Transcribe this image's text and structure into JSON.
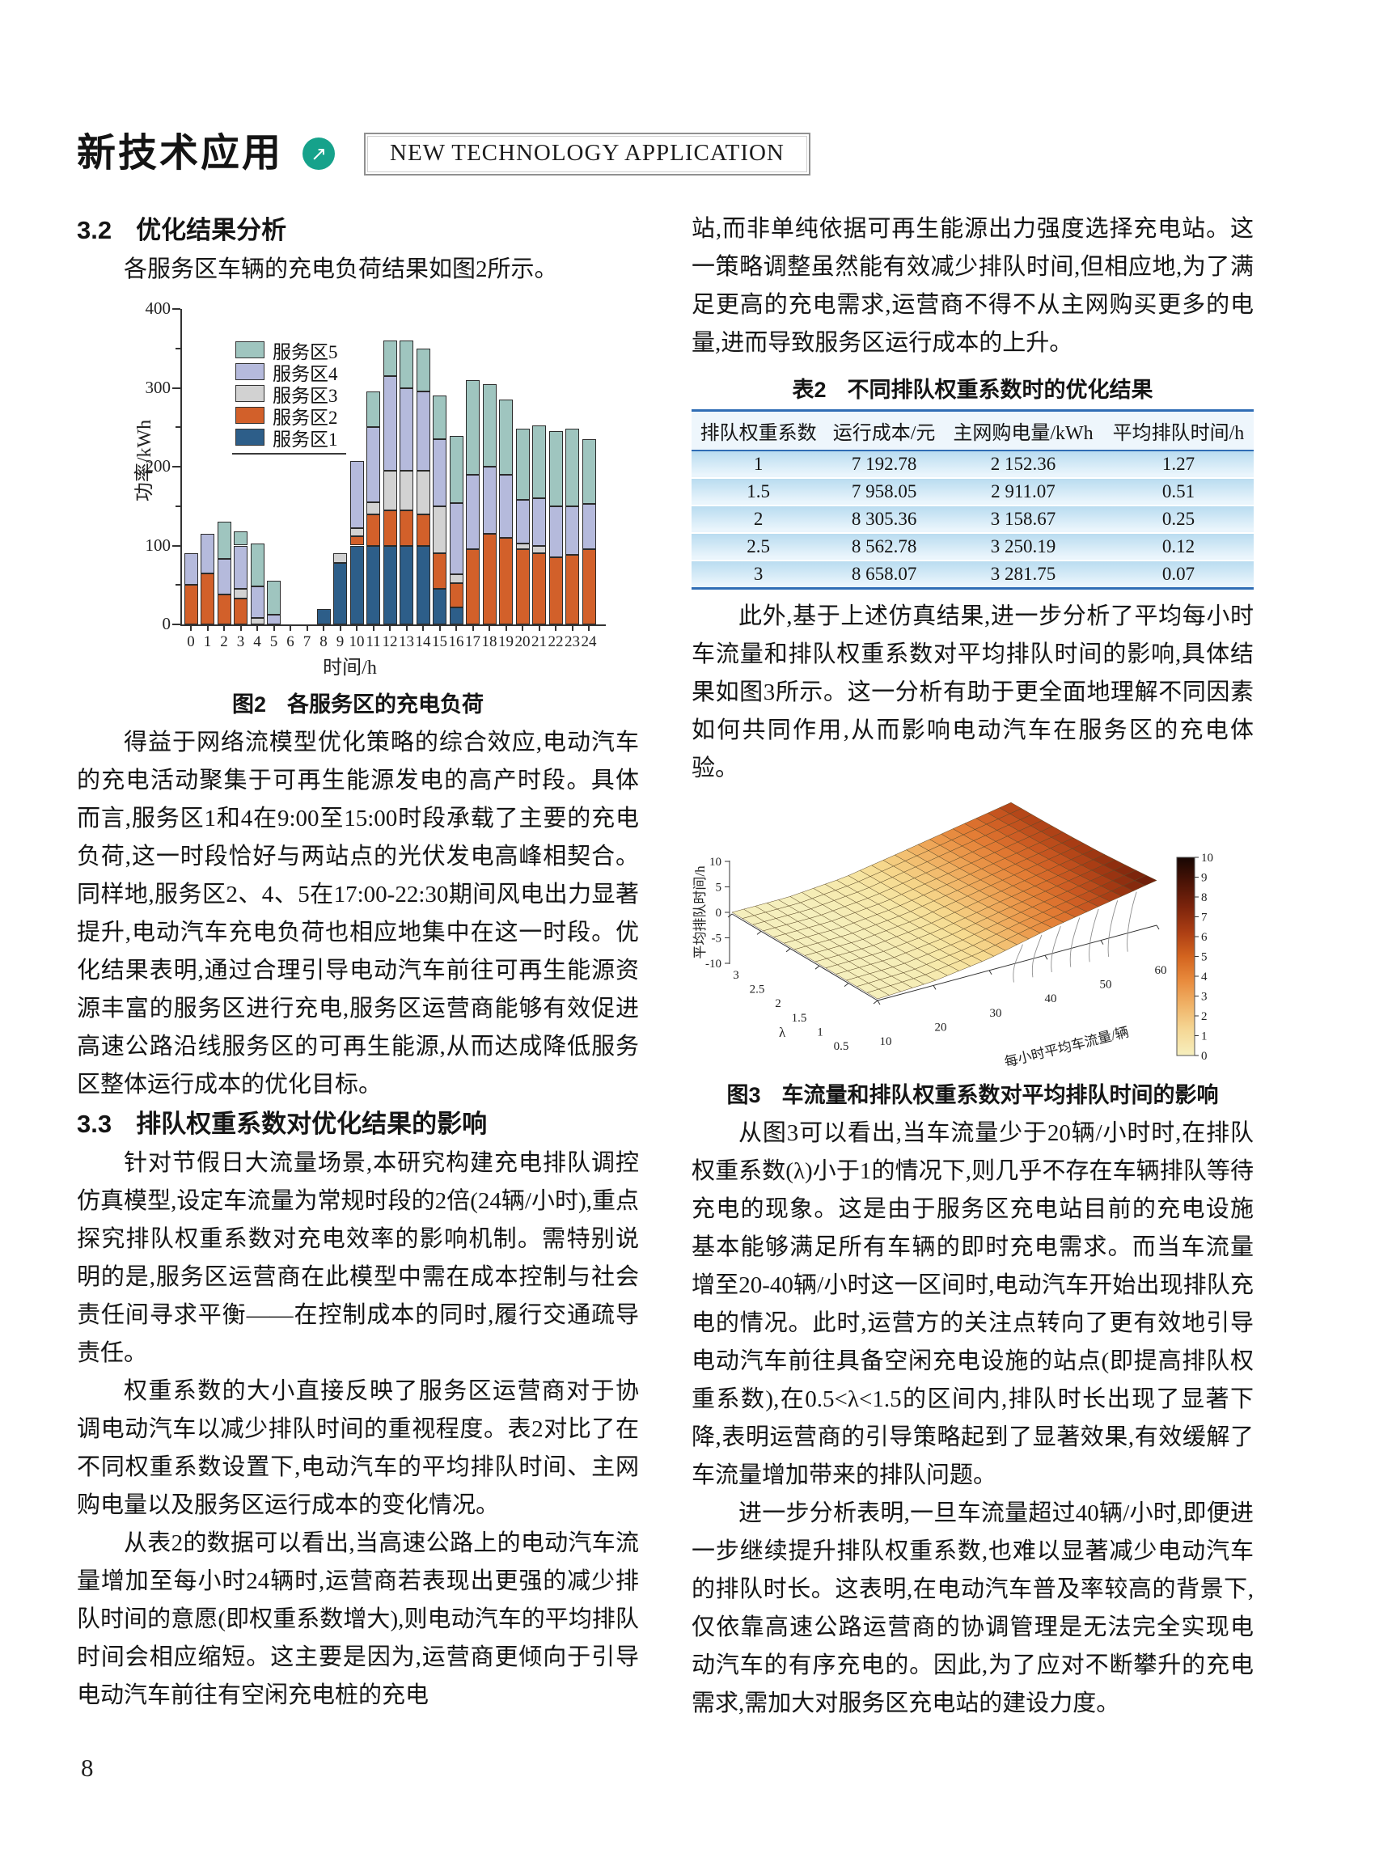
{
  "header": {
    "title_cn": "新技术应用",
    "arrow_glyph": "↗",
    "title_en": "NEW TECHNOLOGY APPLICATION",
    "accent_color": "#16a28b"
  },
  "page_number": "8",
  "left_column": {
    "section_32": {
      "number": "3.2",
      "title": "优化结果分析"
    },
    "para_intro": "各服务区车辆的充电负荷结果如图2所示。",
    "figure2_caption": {
      "label": "图2",
      "title": "各服务区的充电负荷"
    },
    "para_benefit": "得益于网络流模型优化策略的综合效应,电动汽车的充电活动聚集于可再生能源发电的高产时段。具体而言,服务区1和4在9:00至15:00时段承载了主要的充电负荷,这一时段恰好与两站点的光伏发电高峰相契合。同样地,服务区2、4、5在17:00-22:30期间风电出力显著提升,电动汽车充电负荷也相应地集中在这一时段。优化结果表明,通过合理引导电动汽车前往可再生能源资源丰富的服务区进行充电,服务区运营商能够有效促进高速公路沿线服务区的可再生能源,从而达成降低服务区整体运行成本的优化目标。",
    "section_33": {
      "number": "3.3",
      "title": "排队权重系数对优化结果的影响"
    },
    "para_33_1": "针对节假日大流量场景,本研究构建充电排队调控仿真模型,设定车流量为常规时段的2倍(24辆/小时),重点探究排队权重系数对充电效率的影响机制。需特别说明的是,服务区运营商在此模型中需在成本控制与社会责任间寻求平衡——在控制成本的同时,履行交通疏导责任。",
    "para_33_2": "权重系数的大小直接反映了服务区运营商对于协调电动汽车以减少排队时间的重视程度。表2对比了在不同权重系数设置下,电动汽车的平均排队时间、主网购电量以及服务区运行成本的变化情况。",
    "para_33_3": "从表2的数据可以看出,当高速公路上的电动汽车流量增加至每小时24辆时,运营商若表现出更强的减少排队时间的意愿(即权重系数增大),则电动汽车的平均排队时间会相应缩短。这主要是因为,运营商更倾向于引导电动汽车前往有空闲充电桩的充电"
  },
  "right_column": {
    "para_station": "站,而非单纯依据可再生能源出力强度选择充电站。这一策略调整虽然能有效减少排队时间,但相应地,为了满足更高的充电需求,运营商不得不从主网购买更多的电量,进而导致服务区运行成本的上升。",
    "table2": {
      "caption": {
        "label": "表2",
        "title": "不同排队权重系数时的优化结果"
      },
      "headers": [
        "排队权重系数",
        "运行成本/元",
        "主网购电量/kWh",
        "平均排队时间/h"
      ],
      "rows": [
        [
          "1",
          "7 192.78",
          "2 152.36",
          "1.27"
        ],
        [
          "1.5",
          "7 958.05",
          "2 911.07",
          "0.51"
        ],
        [
          "2",
          "8 305.36",
          "3 158.67",
          "0.25"
        ],
        [
          "2.5",
          "8 562.78",
          "3 250.19",
          "0.12"
        ],
        [
          "3",
          "8 658.07",
          "3 281.75",
          "0.07"
        ]
      ]
    },
    "para_further": "此外,基于上述仿真结果,进一步分析了平均每小时车流量和排队权重系数对平均排队时间的影响,具体结果如图3所示。这一分析有助于更全面地理解不同因素如何共同作用,从而影响电动汽车在服务区的充电体验。",
    "figure3_caption": {
      "label": "图3",
      "title": "车流量和排队权重系数对平均排队时间的影响"
    },
    "para_fig3": "从图3可以看出,当车流量少于20辆/小时时,在排队权重系数(λ)小于1的情况下,则几乎不存在车辆排队等待充电的现象。这是由于服务区充电站目前的充电设施基本能够满足所有车辆的即时充电需求。而当车流量增至20-40辆/小时这一区间时,电动汽车开始出现排队充电的情况。此时,运营方的关注点转向了更有效地引导电动汽车前往具备空闲充电设施的站点(即提高排队权重系数),在0.5<λ<1.5的区间内,排队时长出现了显著下降,表明运营商的引导策略起到了显著效果,有效缓解了车流量增加带来的排队问题。",
    "para_final": "进一步分析表明,一旦车流量超过40辆/小时,即便进一步继续提升排队权重系数,也难以显著减少电动汽车的排队时长。这表明,在电动汽车普及率较高的背景下,仅依靠高速公路运营商的协调管理是无法完全实现电动汽车的有序充电的。因此,为了应对不断攀升的充电需求,需加大对服务区充电站的建设力度。"
  },
  "chart_data": [
    {
      "id": "fig2",
      "type": "bar",
      "stacked": true,
      "title": "图2 各服务区的充电负荷",
      "xlabel": "时间/h",
      "ylabel": "功率/kWh",
      "x": [
        0,
        1,
        2,
        3,
        4,
        5,
        6,
        7,
        8,
        9,
        10,
        11,
        12,
        13,
        14,
        15,
        16,
        17,
        18,
        19,
        20,
        21,
        22,
        23,
        24
      ],
      "ylim": [
        0,
        400
      ],
      "yticks": [
        0,
        100,
        200,
        300,
        400
      ],
      "grid": false,
      "legend_position": "upper-left-inside",
      "legend_order_top_to_bottom": [
        "服务区5",
        "服务区4",
        "服务区3",
        "服务区2",
        "服务区1"
      ],
      "series": [
        {
          "name": "服务区1",
          "color": "#2d5e89",
          "values": [
            0,
            0,
            0,
            0,
            0,
            0,
            0,
            0,
            20,
            78,
            100,
            100,
            100,
            100,
            100,
            45,
            22,
            0,
            0,
            0,
            0,
            0,
            0,
            0,
            0
          ]
        },
        {
          "name": "服务区2",
          "color": "#d2602a",
          "values": [
            50,
            65,
            38,
            33,
            0,
            0,
            0,
            0,
            0,
            0,
            12,
            40,
            45,
            45,
            40,
            45,
            30,
            95,
            115,
            110,
            95,
            90,
            85,
            88,
            95
          ]
        },
        {
          "name": "服务区3",
          "color": "#d2d2d2",
          "values": [
            0,
            0,
            0,
            12,
            8,
            0,
            0,
            0,
            0,
            12,
            10,
            15,
            50,
            50,
            55,
            60,
            12,
            0,
            0,
            0,
            8,
            10,
            0,
            0,
            0
          ]
        },
        {
          "name": "服务区4",
          "color": "#b5badc",
          "values": [
            40,
            50,
            45,
            55,
            40,
            12,
            0,
            0,
            0,
            0,
            85,
            95,
            120,
            105,
            100,
            85,
            90,
            95,
            85,
            80,
            55,
            60,
            65,
            62,
            58
          ]
        },
        {
          "name": "服务区5",
          "color": "#9fc5bf",
          "values": [
            0,
            0,
            47,
            18,
            55,
            43,
            0,
            0,
            0,
            0,
            0,
            45,
            45,
            60,
            55,
            55,
            85,
            120,
            105,
            95,
            90,
            92,
            95,
            98,
            82
          ]
        }
      ]
    },
    {
      "id": "fig3",
      "type": "heatmap",
      "subtype": "3d-surface",
      "title": "图3 车流量和排队权重系数对平均排队时间的影响",
      "xlabel": "每小时平均车流量/辆",
      "ylabel_lambda": "λ",
      "zlabel": "平均排队时间/h",
      "x_flow": [
        10,
        20,
        30,
        40,
        50,
        60
      ],
      "y_lambda": [
        0.5,
        1,
        1.5,
        2,
        2.5,
        3
      ],
      "zticks": [
        10,
        5,
        0,
        -5,
        -10
      ],
      "colorbar_range": [
        0,
        10
      ],
      "colorbar_ticks": [
        0,
        1,
        2,
        3,
        4,
        5,
        6,
        7,
        8,
        9,
        10
      ],
      "z_grid_rows_lambda": [
        {
          "lambda": 0.5,
          "values": [
            0,
            0.5,
            2.0,
            4.5,
            6.5,
            8.5
          ]
        },
        {
          "lambda": 1,
          "values": [
            0,
            0.2,
            1.6,
            3.9,
            5.9,
            7.9
          ]
        },
        {
          "lambda": 1.5,
          "values": [
            0,
            0.1,
            1.3,
            3.4,
            5.4,
            7.4
          ]
        },
        {
          "lambda": 2,
          "values": [
            0,
            0.05,
            1.1,
            3.1,
            5.1,
            7.1
          ]
        },
        {
          "lambda": 2.5,
          "values": [
            0,
            0,
            1.0,
            2.9,
            4.9,
            6.9
          ]
        },
        {
          "lambda": 3,
          "values": [
            0,
            0,
            0.9,
            2.8,
            4.8,
            6.8
          ]
        }
      ]
    }
  ]
}
